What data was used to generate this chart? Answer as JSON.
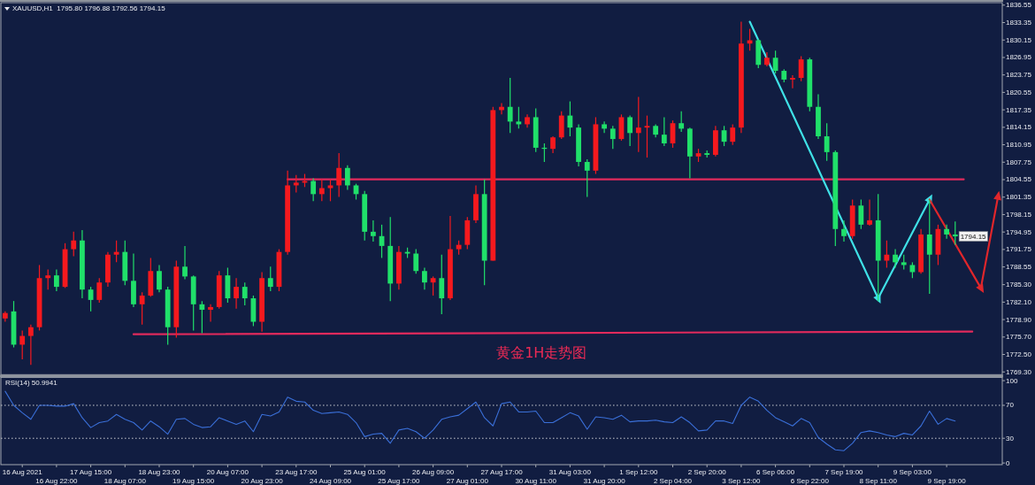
{
  "chart_data": [
    {
      "type": "candlestick",
      "title": "XAUUSD,H1  1795.80 1796.88 1792.56 1794.15",
      "categories": [
        null,
        null,
        null,
        null,
        null,
        null,
        null,
        null,
        null,
        null,
        null,
        null,
        null,
        null,
        null,
        null,
        null,
        null,
        null,
        null,
        null,
        null,
        null,
        null,
        null,
        null,
        null,
        null,
        null,
        null,
        null,
        null,
        null,
        null,
        null,
        null,
        null,
        null,
        null,
        null,
        null,
        null,
        null,
        null,
        null,
        null,
        null,
        null,
        null,
        null,
        null,
        null,
        null,
        null,
        null,
        null,
        null,
        null,
        null,
        null,
        null,
        null,
        null,
        null,
        null,
        null,
        null,
        null,
        null,
        null,
        null,
        null,
        null,
        null,
        null,
        null,
        null,
        null,
        null,
        null,
        null,
        null,
        null,
        null,
        null,
        null,
        null,
        null,
        null,
        null,
        null,
        null,
        null,
        null,
        null,
        null,
        null,
        null,
        null,
        null,
        null,
        null,
        null,
        null,
        null,
        null,
        null,
        null,
        null,
        null,
        null,
        null,
        null,
        null,
        null,
        null,
        null
      ],
      "ohlc": [
        [
          1779.1,
          1780.4,
          1778.5,
          1780.1
        ],
        [
          1780.4,
          1782.3,
          1773.8,
          1774.3
        ],
        [
          1774.3,
          1776.9,
          1771.6,
          1775.9
        ],
        [
          1775.9,
          1778.0,
          1770.6,
          1777.5
        ],
        [
          1777.5,
          1788.9,
          1776.9,
          1786.5
        ],
        [
          1786.5,
          1788.1,
          1784.4,
          1787.0
        ],
        [
          1787.0,
          1788.1,
          1784.1,
          1784.9
        ],
        [
          1784.9,
          1792.9,
          1784.7,
          1791.8
        ],
        [
          1791.8,
          1795.0,
          1790.5,
          1793.4
        ],
        [
          1793.4,
          1795.3,
          1782.8,
          1784.4
        ],
        [
          1784.4,
          1784.9,
          1780.4,
          1782.5
        ],
        [
          1782.5,
          1786.5,
          1782.0,
          1785.7
        ],
        [
          1785.7,
          1791.3,
          1784.9,
          1790.8
        ],
        [
          1790.8,
          1793.4,
          1789.4,
          1791.3
        ],
        [
          1791.3,
          1793.4,
          1785.2,
          1786.0
        ],
        [
          1786.0,
          1791.0,
          1781.2,
          1781.7
        ],
        [
          1781.7,
          1783.9,
          1778.0,
          1783.3
        ],
        [
          1783.3,
          1790.2,
          1783.1,
          1787.8
        ],
        [
          1787.8,
          1788.9,
          1783.9,
          1784.4
        ],
        [
          1784.4,
          1784.9,
          1774.3,
          1777.5
        ],
        [
          1777.5,
          1789.7,
          1775.6,
          1788.6
        ],
        [
          1788.6,
          1792.4,
          1786.3,
          1786.8
        ],
        [
          1786.8,
          1787.0,
          1776.9,
          1781.7
        ],
        [
          1781.7,
          1782.3,
          1776.4,
          1780.7
        ],
        [
          1780.7,
          1781.7,
          1778.5,
          1781.2
        ],
        [
          1781.2,
          1787.8,
          1780.9,
          1787.0
        ],
        [
          1787.0,
          1788.4,
          1782.0,
          1782.8
        ],
        [
          1782.8,
          1786.5,
          1780.9,
          1784.9
        ],
        [
          1784.9,
          1785.7,
          1781.5,
          1782.8
        ],
        [
          1782.8,
          1783.3,
          1777.7,
          1778.5
        ],
        [
          1778.5,
          1787.6,
          1776.7,
          1786.5
        ],
        [
          1786.5,
          1788.6,
          1784.1,
          1784.9
        ],
        [
          1784.9,
          1791.8,
          1784.1,
          1791.3
        ],
        [
          1791.3,
          1806.2,
          1790.8,
          1803.5
        ],
        [
          1803.5,
          1805.4,
          1802.2,
          1804.0
        ],
        [
          1804.0,
          1805.6,
          1803.2,
          1804.3
        ],
        [
          1804.3,
          1804.8,
          1800.6,
          1801.9
        ],
        [
          1801.9,
          1804.6,
          1800.6,
          1803.0
        ],
        [
          1803.0,
          1804.6,
          1800.6,
          1803.5
        ],
        [
          1803.5,
          1809.4,
          1801.4,
          1806.7
        ],
        [
          1806.7,
          1807.2,
          1802.7,
          1803.5
        ],
        [
          1803.5,
          1803.8,
          1800.9,
          1801.9
        ],
        [
          1801.9,
          1802.5,
          1793.4,
          1795.0
        ],
        [
          1795.0,
          1797.1,
          1793.2,
          1794.2
        ],
        [
          1794.2,
          1796.3,
          1790.2,
          1792.4
        ],
        [
          1792.4,
          1797.7,
          1782.3,
          1785.5
        ],
        [
          1785.5,
          1792.4,
          1784.4,
          1791.3
        ],
        [
          1791.3,
          1792.1,
          1790.2,
          1791.0
        ],
        [
          1791.0,
          1791.8,
          1787.3,
          1787.8
        ],
        [
          1787.8,
          1788.4,
          1784.4,
          1785.7
        ],
        [
          1785.7,
          1786.8,
          1783.3,
          1786.5
        ],
        [
          1786.5,
          1790.8,
          1779.9,
          1782.8
        ],
        [
          1782.8,
          1797.9,
          1782.5,
          1791.8
        ],
        [
          1791.8,
          1793.4,
          1790.8,
          1792.6
        ],
        [
          1792.6,
          1797.7,
          1791.8,
          1797.1
        ],
        [
          1797.1,
          1803.5,
          1796.6,
          1801.9
        ],
        [
          1801.9,
          1804.6,
          1785.2,
          1789.7
        ],
        [
          1789.7,
          1817.9,
          1789.7,
          1817.3
        ],
        [
          1817.3,
          1818.6,
          1816.5,
          1817.9
        ],
        [
          1817.9,
          1823.2,
          1813.1,
          1815.2
        ],
        [
          1815.2,
          1817.9,
          1813.9,
          1814.7
        ],
        [
          1814.7,
          1816.5,
          1814.1,
          1816.0
        ],
        [
          1816.0,
          1817.6,
          1809.6,
          1810.4
        ],
        [
          1810.4,
          1811.2,
          1807.8,
          1810.2
        ],
        [
          1810.2,
          1812.5,
          1809.4,
          1812.3
        ],
        [
          1812.3,
          1817.1,
          1812.0,
          1816.3
        ],
        [
          1816.3,
          1818.9,
          1812.5,
          1814.1
        ],
        [
          1814.1,
          1814.7,
          1807.0,
          1807.8
        ],
        [
          1807.8,
          1808.3,
          1801.4,
          1806.2
        ],
        [
          1806.2,
          1816.0,
          1805.6,
          1814.7
        ],
        [
          1814.7,
          1815.2,
          1813.1,
          1813.9
        ],
        [
          1813.9,
          1814.4,
          1810.2,
          1812.0
        ],
        [
          1812.0,
          1816.5,
          1811.7,
          1816.0
        ],
        [
          1816.0,
          1816.3,
          1810.7,
          1813.1
        ],
        [
          1813.1,
          1819.7,
          1809.6,
          1814.1
        ],
        [
          1814.1,
          1816.3,
          1808.6,
          1814.4
        ],
        [
          1814.4,
          1814.7,
          1812.3,
          1812.8
        ],
        [
          1812.8,
          1816.0,
          1810.7,
          1811.2
        ],
        [
          1811.2,
          1815.4,
          1810.4,
          1814.9
        ],
        [
          1814.9,
          1817.1,
          1813.3,
          1813.9
        ],
        [
          1813.9,
          1814.1,
          1804.8,
          1808.8
        ],
        [
          1808.8,
          1810.2,
          1807.8,
          1809.4
        ],
        [
          1809.4,
          1809.9,
          1808.6,
          1809.1
        ],
        [
          1809.1,
          1814.4,
          1808.8,
          1813.6
        ],
        [
          1813.6,
          1814.4,
          1810.7,
          1811.5
        ],
        [
          1811.5,
          1814.7,
          1810.9,
          1814.1
        ],
        [
          1814.1,
          1833.5,
          1813.1,
          1829.5
        ],
        [
          1829.5,
          1832.2,
          1828.2,
          1830.1
        ],
        [
          1830.1,
          1830.3,
          1825.0,
          1825.6
        ],
        [
          1825.6,
          1827.9,
          1825.3,
          1826.9
        ],
        [
          1826.9,
          1828.2,
          1824.0,
          1824.5
        ],
        [
          1824.5,
          1824.8,
          1822.4,
          1822.9
        ],
        [
          1822.9,
          1823.7,
          1821.3,
          1823.2
        ],
        [
          1823.2,
          1827.2,
          1822.6,
          1826.6
        ],
        [
          1826.6,
          1826.9,
          1817.1,
          1817.9
        ],
        [
          1817.9,
          1820.2,
          1812.0,
          1812.5
        ],
        [
          1812.5,
          1814.9,
          1808.0,
          1809.6
        ],
        [
          1809.6,
          1809.9,
          1792.4,
          1795.5
        ],
        [
          1795.5,
          1797.1,
          1793.2,
          1794.2
        ],
        [
          1794.2,
          1800.9,
          1793.7,
          1799.8
        ],
        [
          1799.8,
          1800.9,
          1795.5,
          1796.3
        ],
        [
          1796.3,
          1800.9,
          1796.1,
          1797.1
        ],
        [
          1797.1,
          1801.9,
          1782.3,
          1789.7
        ],
        [
          1789.7,
          1793.4,
          1788.4,
          1790.8
        ],
        [
          1790.8,
          1791.8,
          1788.4,
          1789.4
        ],
        [
          1789.4,
          1790.8,
          1788.1,
          1788.9
        ],
        [
          1788.9,
          1789.4,
          1786.5,
          1787.6
        ],
        [
          1787.6,
          1795.5,
          1787.3,
          1794.5
        ],
        [
          1794.5,
          1800.9,
          1783.6,
          1790.8
        ],
        [
          1790.8,
          1796.3,
          1788.9,
          1795.5
        ],
        [
          1795.5,
          1796.3,
          1793.7,
          1794.5
        ],
        [
          1794.5,
          1796.9,
          1792.6,
          1794.15
        ],
        null,
        null,
        null,
        null,
        null
      ],
      "colors": [
        "#f5191e",
        "#20e06a",
        "#f5191e",
        "#f5191e",
        "#f5191e",
        "#f5191e",
        "#20e06a",
        "#f5191e",
        "#f5191e",
        "#20e06a",
        "#20e06a",
        "#f5191e",
        "#f5191e",
        "#f5191e",
        "#20e06a",
        "#20e06a",
        "#f5191e",
        "#f5191e",
        "#20e06a",
        "#20e06a",
        "#f5191e",
        "#20e06a",
        "#20e06a",
        "#20e06a",
        "#f5191e",
        "#f5191e",
        "#20e06a",
        "#f5191e",
        "#20e06a",
        "#20e06a",
        "#f5191e",
        "#20e06a",
        "#f5191e",
        "#f5191e",
        "#f5191e",
        "#f5191e",
        "#20e06a",
        "#f5191e",
        "#f5191e",
        "#f5191e",
        "#20e06a",
        "#20e06a",
        "#20e06a",
        "#20e06a",
        "#20e06a",
        "#20e06a",
        "#f5191e",
        "#20e06a",
        "#20e06a",
        "#20e06a",
        "#f5191e",
        "#20e06a",
        "#f5191e",
        "#f5191e",
        "#f5191e",
        "#f5191e",
        "#20e06a",
        "#f5191e",
        "#f5191e",
        "#20e06a",
        "#20e06a",
        "#f5191e",
        "#20e06a",
        "#20e06a",
        "#f5191e",
        "#f5191e",
        "#20e06a",
        "#20e06a",
        "#20e06a",
        "#f5191e",
        "#20e06a",
        "#20e06a",
        "#f5191e",
        "#20e06a",
        "#f5191e",
        "#f5191e",
        "#20e06a",
        "#20e06a",
        "#f5191e",
        "#20e06a",
        "#20e06a",
        "#f5191e",
        "#20e06a",
        "#f5191e",
        "#20e06a",
        "#f5191e",
        "#f5191e",
        "#f5191e",
        "#20e06a",
        "#f5191e",
        "#20e06a",
        "#20e06a",
        "#f5191e",
        "#f5191e",
        "#20e06a",
        "#20e06a",
        "#20e06a",
        "#20e06a",
        "#20e06a",
        "#f5191e",
        "#20e06a",
        "#f5191e",
        "#20e06a",
        "#f5191e",
        "#20e06a",
        "#20e06a",
        "#20e06a",
        "#f5191e",
        "#20e06a",
        "#f5191e",
        "#20e06a",
        "#20e06a",
        null,
        null,
        null,
        null,
        null
      ],
      "series": [
        {
          "type": "line",
          "color": "#e22a5c",
          "values": [
            null,
            null,
            null,
            null,
            null,
            null,
            null,
            null,
            null,
            null,
            null,
            null,
            null,
            null,
            null,
            null,
            null,
            null,
            null,
            null,
            null,
            null,
            null,
            null,
            null,
            null,
            null,
            null,
            null,
            null,
            null,
            null,
            null,
            1804.6,
            null,
            null,
            null,
            null,
            null,
            null,
            null,
            null,
            null,
            null,
            null,
            null,
            null,
            null,
            null,
            null,
            null,
            null,
            null,
            null,
            null,
            null,
            null,
            null,
            null,
            null,
            null,
            null,
            null,
            null,
            null,
            null,
            null,
            null,
            null,
            null,
            null,
            null,
            null,
            null,
            null,
            null,
            null,
            null,
            null,
            null,
            null,
            null,
            null,
            null,
            null,
            null,
            null,
            null,
            null,
            null,
            null,
            null,
            null,
            null,
            null,
            null,
            null,
            null,
            null,
            null,
            null,
            null,
            null,
            null,
            null,
            null,
            null,
            null,
            null,
            null,
            null,
            null,
            1804.6,
            null,
            null,
            null,
            null
          ]
        },
        {
          "type": "line",
          "color": "#e22a5c",
          "values": [
            null,
            null,
            null,
            null,
            null,
            null,
            null,
            null,
            null,
            null,
            null,
            null,
            null,
            null,
            null,
            1776.2,
            null,
            null,
            null,
            null,
            null,
            null,
            null,
            null,
            null,
            null,
            null,
            null,
            null,
            null,
            null,
            null,
            null,
            null,
            null,
            null,
            null,
            null,
            null,
            null,
            null,
            null,
            null,
            null,
            null,
            null,
            null,
            null,
            null,
            null,
            null,
            null,
            null,
            null,
            null,
            null,
            null,
            null,
            null,
            null,
            null,
            null,
            null,
            null,
            null,
            null,
            null,
            null,
            null,
            null,
            null,
            null,
            null,
            null,
            null,
            null,
            null,
            null,
            null,
            null,
            null,
            null,
            null,
            null,
            null,
            null,
            null,
            null,
            null,
            null,
            null,
            null,
            null,
            null,
            null,
            null,
            null,
            null,
            null,
            null,
            null,
            null,
            null,
            null,
            null,
            null,
            null,
            null,
            null,
            null,
            null,
            null,
            null,
            1776.7,
            null,
            null,
            null
          ]
        },
        {
          "type": "line",
          "color": "#3fe0e6",
          "marker": "triangle",
          "values": [
            null,
            null,
            null,
            null,
            null,
            null,
            null,
            null,
            null,
            null,
            null,
            null,
            null,
            null,
            null,
            null,
            null,
            null,
            null,
            null,
            null,
            null,
            null,
            null,
            null,
            null,
            null,
            null,
            null,
            null,
            null,
            null,
            null,
            null,
            null,
            null,
            null,
            null,
            null,
            null,
            null,
            null,
            null,
            null,
            null,
            null,
            null,
            null,
            null,
            null,
            null,
            null,
            null,
            null,
            null,
            null,
            null,
            null,
            null,
            null,
            null,
            null,
            null,
            null,
            null,
            null,
            null,
            null,
            null,
            null,
            null,
            null,
            null,
            null,
            null,
            null,
            null,
            null,
            null,
            null,
            null,
            null,
            null,
            null,
            null,
            null,
            null,
            1833.5,
            null,
            null,
            null,
            null,
            null,
            null,
            null,
            null,
            null,
            null,
            null,
            null,
            null,
            null,
            1782.8,
            null,
            null,
            null,
            null,
            null,
            1800.9,
            null,
            null,
            null,
            null,
            null,
            null,
            null,
            null
          ]
        },
        {
          "type": "line",
          "color": "#e0262b",
          "marker": "triangle",
          "values": [
            null,
            null,
            null,
            null,
            null,
            null,
            null,
            null,
            null,
            null,
            null,
            null,
            null,
            null,
            null,
            null,
            null,
            null,
            null,
            null,
            null,
            null,
            null,
            null,
            null,
            null,
            null,
            null,
            null,
            null,
            null,
            null,
            null,
            null,
            null,
            null,
            null,
            null,
            null,
            null,
            null,
            null,
            null,
            null,
            null,
            null,
            null,
            null,
            null,
            null,
            null,
            null,
            null,
            null,
            null,
            null,
            null,
            null,
            null,
            null,
            null,
            null,
            null,
            null,
            null,
            null,
            null,
            null,
            null,
            null,
            null,
            null,
            null,
            null,
            null,
            null,
            null,
            null,
            null,
            null,
            null,
            null,
            null,
            null,
            null,
            null,
            null,
            null,
            null,
            null,
            null,
            null,
            null,
            null,
            null,
            null,
            null,
            null,
            null,
            null,
            null,
            null,
            null,
            null,
            null,
            null,
            null,
            null,
            1800.9,
            null,
            null,
            null,
            null,
            null,
            1784.7,
            null,
            1801.4
          ]
        }
      ],
      "ylim": [
        1768.8,
        1837.0
      ],
      "yticks": [
        {
          "value": 1769.3,
          "label": "1769.30"
        },
        {
          "value": 1772.5,
          "label": "1772.50"
        },
        {
          "value": 1775.7,
          "label": "1775.70"
        },
        {
          "value": 1778.9,
          "label": "1778.90"
        },
        {
          "value": 1782.1,
          "label": "1782.10"
        },
        {
          "value": 1785.3,
          "label": "1785.30"
        },
        1788.55,
        1791.75,
        1794.95,
        1798.15,
        1801.35,
        1804.55,
        1807.75,
        1810.95,
        1814.15,
        1817.35,
        1820.55,
        1823.75,
        1826.95,
        1830.15,
        1833.35,
        1836.55
      ],
      "tick_labels": "y",
      "annotations": [
        "黄金1H走势图",
        {
          "text": "1794.15",
          "y": 1794.15
        }
      ]
    },
    {
      "type": "line",
      "title": "RSI(14) 50.9941",
      "categories": [
        null,
        null,
        "16 Aug 2021",
        null,
        null,
        null,
        "16 Aug 22:00",
        null,
        null,
        null,
        "17 Aug 15:00",
        null,
        null,
        null,
        "18 Aug 07:00",
        null,
        null,
        null,
        "18 Aug 23:00",
        null,
        null,
        null,
        "19 Aug 15:00",
        null,
        null,
        null,
        "20 Aug 07:00",
        null,
        null,
        null,
        "20 Aug 23:00",
        null,
        null,
        null,
        "23 Aug 17:00",
        null,
        null,
        null,
        "24 Aug 09:00",
        null,
        null,
        null,
        "25 Aug 01:00",
        null,
        null,
        null,
        "25 Aug 17:00",
        null,
        null,
        null,
        "26 Aug 09:00",
        null,
        null,
        null,
        "27 Aug 01:00",
        null,
        null,
        null,
        "27 Aug 17:00",
        null,
        null,
        null,
        "30 Aug 11:00",
        null,
        null,
        null,
        "31 Aug 03:00",
        null,
        null,
        null,
        "31 Aug 20:00",
        null,
        null,
        null,
        "1 Sep 12:00",
        null,
        null,
        null,
        "2 Sep 04:00",
        null,
        null,
        null,
        "2 Sep 20:00",
        null,
        null,
        null,
        "3 Sep 12:00",
        null,
        null,
        null,
        "6 Sep 06:00",
        null,
        null,
        null,
        "6 Sep 22:00",
        null,
        null,
        null,
        "7 Sep 19:00",
        null,
        null,
        null,
        "8 Sep 11:00",
        null,
        null,
        null,
        "9 Sep 03:00",
        null,
        null,
        null,
        "9 Sep 19:00",
        null,
        null,
        null,
        null,
        null,
        null
      ],
      "series": [
        {
          "color": "#3a6fd8",
          "values": [
            87,
            70,
            61,
            53,
            70,
            70,
            69,
            69,
            72,
            55,
            43,
            49,
            51,
            59,
            53,
            49,
            40,
            51,
            44,
            35,
            53,
            54,
            47,
            43,
            44,
            55,
            51,
            47,
            51,
            38,
            59,
            57,
            62,
            80,
            75,
            74,
            64,
            60,
            61,
            62,
            59,
            49,
            32,
            35,
            36,
            24,
            40,
            42,
            38,
            30,
            40,
            53,
            56,
            58,
            66,
            74,
            55,
            45,
            72,
            74,
            62,
            62,
            63,
            49,
            49,
            55,
            61,
            57,
            41,
            56,
            55,
            53,
            58,
            50,
            51,
            51,
            52,
            50,
            49,
            56,
            49,
            39,
            40,
            51,
            51,
            48,
            70,
            80,
            75,
            64,
            55,
            50,
            45,
            54,
            49,
            31,
            23,
            16,
            15,
            24,
            37,
            39,
            37,
            34,
            32,
            36,
            34,
            45,
            63,
            47,
            54,
            51,
            null,
            null,
            null,
            null,
            null
          ]
        }
      ],
      "ylim": [
        -2,
        104
      ],
      "yticks": [
        0,
        30,
        70,
        100
      ],
      "ref_lines": [
        {
          "axis": "y",
          "value": 30,
          "color": "#c9ccd2",
          "line_style": "dotted"
        },
        {
          "axis": "y",
          "value": 70,
          "color": "#c9ccd2",
          "line_style": "dotted"
        }
      ]
    }
  ]
}
